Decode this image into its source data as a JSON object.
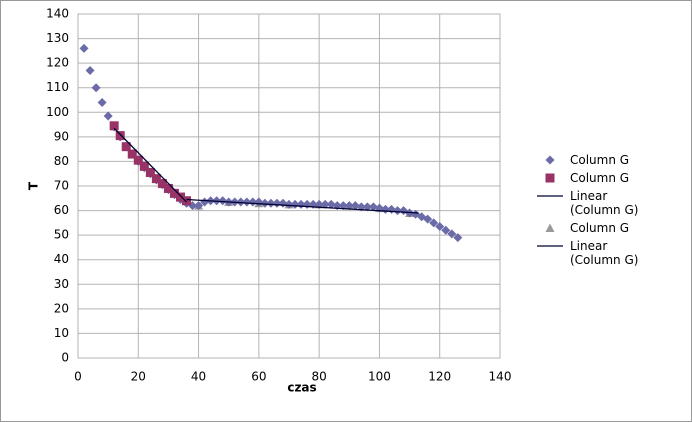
{
  "chart_data": {
    "type": "scatter",
    "xlabel": "czas",
    "ylabel": "T",
    "xlim": [
      0,
      140
    ],
    "xticks": [
      0,
      20,
      40,
      60,
      80,
      100,
      120,
      140
    ],
    "ylim": [
      0,
      140
    ],
    "yticks": [
      0,
      10,
      20,
      30,
      40,
      50,
      60,
      70,
      80,
      90,
      100,
      110,
      120,
      130,
      140
    ],
    "grid": true,
    "legend": "right",
    "series": [
      {
        "name": "Column G",
        "marker": "diamond",
        "color": "#6b6ba8",
        "x": [
          2,
          4,
          6,
          8,
          10,
          12,
          14,
          16,
          18,
          20,
          22,
          24,
          26,
          28,
          30,
          32,
          34,
          36,
          38,
          40,
          42,
          44,
          46,
          48,
          50,
          52,
          54,
          56,
          58,
          60,
          62,
          64,
          66,
          68,
          70,
          72,
          74,
          76,
          78,
          80,
          82,
          84,
          86,
          88,
          90,
          92,
          94,
          96,
          98,
          100,
          102,
          104,
          106,
          108,
          110,
          112,
          114,
          116,
          118,
          120,
          122,
          124,
          126
        ],
        "values": [
          126,
          117,
          110,
          104,
          98.5,
          94,
          90,
          86,
          83,
          80,
          77.5,
          75,
          72.5,
          70.5,
          68.5,
          66.5,
          64.5,
          63,
          62,
          62,
          63.5,
          64,
          64,
          64,
          63.5,
          63.5,
          63.5,
          63.5,
          63.5,
          63.5,
          63,
          63,
          63,
          63,
          62.5,
          62.5,
          62.5,
          62.5,
          62.5,
          62.5,
          62.5,
          62.5,
          62,
          62,
          62,
          62,
          61.5,
          61.5,
          61.5,
          61,
          60.5,
          60.5,
          60,
          60,
          59,
          58.5,
          57.5,
          56.5,
          55,
          53.5,
          52,
          50.5,
          49
        ]
      },
      {
        "name": "Column G",
        "marker": "square",
        "color": "#993366",
        "x": [
          12,
          14,
          16,
          18,
          20,
          22,
          24,
          26,
          28,
          30,
          32,
          34,
          36
        ],
        "values": [
          94.5,
          90.5,
          86,
          83,
          80.5,
          78,
          75.5,
          73,
          71,
          69,
          67,
          65.5,
          64
        ]
      },
      {
        "name": "Linear (Column G)",
        "marker": "line",
        "color": "#000033",
        "x": [
          12,
          36
        ],
        "values": [
          93.5,
          63.5
        ]
      },
      {
        "name": "Column G",
        "marker": "triangle",
        "color": "#999999",
        "x": [
          40,
          50,
          60,
          70,
          80,
          90,
          100,
          110
        ],
        "values": [
          62,
          63.5,
          63,
          62.5,
          62.5,
          62,
          61,
          59
        ]
      },
      {
        "name": "Linear (Column G)",
        "marker": "line",
        "color": "#000033",
        "x": [
          36,
          113
        ],
        "values": [
          64.5,
          59
        ]
      }
    ]
  }
}
